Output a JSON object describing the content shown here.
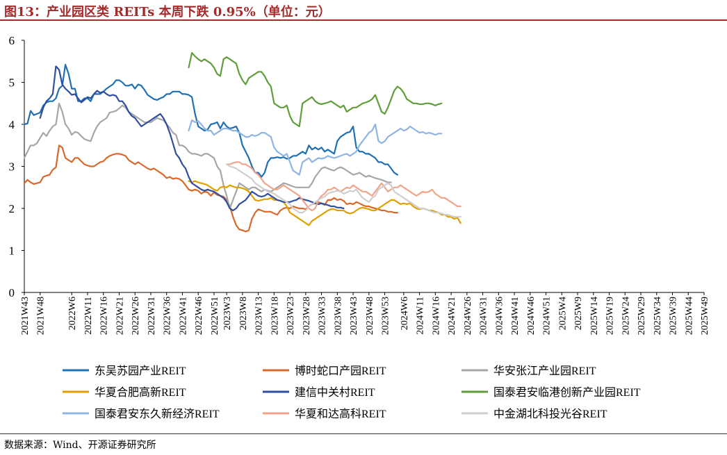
{
  "title": "图13：产业园区类 REITs 本周下跌 0.95%（单位：元）",
  "source": "数据来源：Wind、开源证券研究所",
  "chart_data": {
    "type": "line",
    "title": "图13：产业园区类 REITs 本周下跌 0.95%（单位：元）",
    "xlabel": "",
    "ylabel": "",
    "ylim": [
      0,
      6
    ],
    "yticks": [
      0,
      1,
      2,
      3,
      4,
      5,
      6
    ],
    "grid": false,
    "legend_position": "bottom",
    "x_start_label": "2021W43",
    "x_end_label": "2025W49",
    "x_tick_labels": [
      "2021W43",
      "2021W48",
      "2022W6",
      "2022W11",
      "2022W16",
      "2022W21",
      "2022W26",
      "2022W31",
      "2022W36",
      "2022W41",
      "2022W46",
      "2022W51",
      "2023W3",
      "2023W8",
      "2023W13",
      "2023W18",
      "2023W23",
      "2023W28",
      "2023W33",
      "2023W38",
      "2023W43",
      "2023W48",
      "2023W53",
      "2024W6",
      "2024W11",
      "2024W16",
      "2024W21",
      "2024W26",
      "2024W31",
      "2024W36",
      "2024W41",
      "2024W46",
      "2024W51",
      "2025W4",
      "2025W9",
      "2025W14",
      "2025W19",
      "2025W24",
      "2025W29",
      "2025W34",
      "2025W39",
      "2025W44",
      "2025W49"
    ],
    "series": [
      {
        "name": "东吴苏园产业REIT",
        "color": "#1f6fb3",
        "start": "2021W43",
        "values": [
          4.0,
          4.02,
          4.32,
          4.22,
          4.25,
          4.28,
          4.45,
          4.52,
          4.55,
          4.55,
          4.62,
          4.85,
          4.92,
          5.42,
          5.2,
          4.85,
          4.85,
          4.55,
          4.55,
          4.62,
          4.62,
          4.55,
          4.72,
          4.72,
          4.72,
          4.78,
          4.85,
          4.9,
          4.95,
          5.05,
          5.05,
          5.0,
          4.92,
          4.92,
          4.95,
          4.85,
          4.95,
          4.92,
          4.82,
          4.7,
          4.65,
          4.6,
          4.58,
          4.62,
          4.65,
          4.72,
          4.72,
          4.78,
          4.78,
          4.78,
          4.72,
          4.72,
          4.7,
          4.65,
          4.25,
          3.95,
          3.9,
          3.85,
          3.88,
          4.0,
          4.02,
          4.05,
          3.9,
          4.05,
          3.95,
          3.9,
          3.92,
          3.95,
          3.8,
          3.5,
          3.35,
          3.2,
          3.0,
          2.85,
          2.85,
          2.75,
          2.85,
          3.1,
          3.2,
          3.2,
          3.22,
          3.2,
          3.22,
          3.18,
          3.2,
          3.25,
          3.25,
          3.3,
          3.35,
          3.3,
          3.5,
          3.4,
          3.45,
          3.4,
          3.45,
          3.35,
          3.4,
          3.35,
          3.3,
          3.6,
          3.7,
          3.75,
          3.8,
          3.82,
          3.95,
          3.45,
          3.35,
          3.35,
          3.3,
          3.3,
          3.25,
          3.2,
          3.1,
          3.1,
          3.05,
          3.05,
          2.95,
          2.85,
          2.8
        ]
      },
      {
        "name": "博时蛇口产园REIT",
        "color": "#d9682b",
        "start": "2021W43",
        "values": [
          2.6,
          2.68,
          2.62,
          2.58,
          2.6,
          2.62,
          2.75,
          2.78,
          2.8,
          2.92,
          2.98,
          3.5,
          3.45,
          3.2,
          3.15,
          3.1,
          3.2,
          3.2,
          3.12,
          3.05,
          3.02,
          3.0,
          3.0,
          3.05,
          3.1,
          3.12,
          3.2,
          3.25,
          3.28,
          3.3,
          3.3,
          3.28,
          3.25,
          3.15,
          3.1,
          3.05,
          3.1,
          3.05,
          3.0,
          2.95,
          2.92,
          2.95,
          2.9,
          2.85,
          2.8,
          2.72,
          2.75,
          2.7,
          2.72,
          2.7,
          2.65,
          2.55,
          2.45,
          2.42,
          2.45,
          2.42,
          2.35,
          2.4,
          2.38,
          2.3,
          2.38,
          2.32,
          2.3,
          2.28,
          2.2,
          2.05,
          1.8,
          1.6,
          1.5,
          1.48,
          1.45,
          1.48,
          1.75,
          1.9,
          1.98,
          1.95,
          1.92,
          1.92,
          1.92,
          1.88,
          1.85,
          1.95,
          2.0,
          2.02,
          2.0,
          2.05,
          2.02,
          2.0,
          2.0,
          1.98,
          2.05,
          2.1,
          2.12,
          2.15,
          2.12,
          2.08,
          2.2,
          2.2,
          2.25,
          2.2,
          2.22,
          2.18,
          2.1,
          2.12,
          2.1,
          2.15,
          2.12,
          2.08,
          2.05,
          2.05,
          2.02,
          2.0,
          1.98,
          1.95,
          1.95,
          1.92,
          1.92,
          1.9,
          1.9
        ]
      },
      {
        "name": "华安张江产业园REIT",
        "color": "#a6a6a6",
        "start": "2021W43",
        "values": [
          3.2,
          3.35,
          3.5,
          3.5,
          3.55,
          3.68,
          3.8,
          3.72,
          3.85,
          3.95,
          4.0,
          4.5,
          4.3,
          4.0,
          3.9,
          3.75,
          3.82,
          3.8,
          3.72,
          3.65,
          3.62,
          3.6,
          3.8,
          3.95,
          4.05,
          4.1,
          4.15,
          4.28,
          4.3,
          4.32,
          4.38,
          4.45,
          4.4,
          4.3,
          4.25,
          4.2,
          4.15,
          4.1,
          4.05,
          4.05,
          4.05,
          4.1,
          4.15,
          4.12,
          4.1,
          4.0,
          3.92,
          3.8,
          3.75,
          3.5,
          3.5,
          3.45,
          3.35,
          3.3,
          3.3,
          3.28,
          3.25,
          3.3,
          3.3,
          3.25,
          3.2,
          3.0,
          2.9,
          2.55,
          2.3,
          2.0,
          2.2,
          2.4,
          2.6,
          2.55,
          2.5,
          2.45,
          2.5,
          2.5,
          2.45,
          2.4,
          2.45,
          2.42,
          2.4,
          2.45,
          2.5,
          2.55,
          2.6,
          2.58,
          2.55,
          2.52,
          2.5,
          2.5,
          2.5,
          2.5,
          2.5,
          2.6,
          2.75,
          2.85,
          2.95,
          2.98,
          2.95,
          2.92,
          2.9,
          2.95,
          2.98,
          2.95,
          2.9,
          2.85,
          2.8,
          2.82,
          2.85,
          2.8,
          2.75,
          2.78,
          2.75,
          2.72,
          2.7,
          2.68,
          2.65,
          2.62,
          2.62
        ]
      },
      {
        "name": "华夏合肥高新REIT",
        "color": "#e0a100",
        "start": "2022W43",
        "values": [
          2.65,
          2.62,
          2.65,
          2.62,
          2.6,
          2.58,
          2.55,
          2.5,
          2.45,
          2.42,
          2.5,
          2.52,
          2.5,
          2.55,
          2.52,
          2.5,
          2.5,
          2.48,
          2.45,
          2.4,
          2.3,
          2.2,
          2.18,
          2.2,
          2.22,
          2.22,
          2.25,
          2.2,
          2.2,
          2.18,
          2.15,
          2.05,
          1.9,
          1.85,
          1.8,
          1.75,
          1.7,
          1.65,
          1.6,
          1.7,
          1.75,
          1.8,
          1.85,
          1.9,
          1.95,
          1.98,
          1.98,
          1.95,
          1.95,
          1.95,
          1.9,
          1.88,
          1.9,
          1.95,
          2.0,
          2.02,
          2.0,
          1.98,
          1.95,
          1.95,
          2.0,
          2.05,
          2.1,
          2.15,
          2.2,
          2.2,
          2.15,
          2.1,
          2.12,
          2.1,
          2.12,
          2.05,
          2.0,
          1.98,
          2.0,
          1.98,
          1.95,
          1.95,
          1.92,
          1.9,
          1.85,
          1.85,
          1.8,
          1.8,
          1.75,
          1.78,
          1.65
        ]
      },
      {
        "name": "建信中关村REIT",
        "color": "#2f4ea0",
        "start": "2021W48",
        "values": [
          4.15,
          4.4,
          4.55,
          4.62,
          4.72,
          5.38,
          5.3,
          4.95,
          4.85,
          4.78,
          4.7,
          4.72,
          4.62,
          4.52,
          4.58,
          4.65,
          4.62,
          4.72,
          4.8,
          4.75,
          4.78,
          4.72,
          4.68,
          4.7,
          4.68,
          4.55,
          4.55,
          4.45,
          4.3,
          4.2,
          4.15,
          4.05,
          3.95,
          4.0,
          4.05,
          4.1,
          4.15,
          4.2,
          4.25,
          4.15,
          4.0,
          3.8,
          3.55,
          3.3,
          3.2,
          3.05,
          2.95,
          2.75,
          2.6,
          2.55,
          2.5,
          2.45,
          2.42,
          2.45,
          2.42,
          2.4,
          2.35,
          2.3,
          2.25,
          2.15,
          2.0,
          1.95,
          2.0,
          2.1,
          2.15,
          2.2,
          2.3,
          2.4,
          2.35,
          2.3,
          2.28,
          2.3,
          2.35,
          2.3,
          2.25,
          2.2,
          2.18,
          2.15,
          2.15,
          2.15,
          2.18,
          2.2,
          2.25,
          2.22,
          2.2,
          2.18,
          2.15,
          2.12,
          2.1,
          2.12,
          2.1,
          2.08,
          2.05,
          2.05,
          2.02,
          2.02,
          2.0
        ]
      },
      {
        "name": "国泰君安临港创新产业园REIT",
        "color": "#5f9e3a",
        "start": "2022W43",
        "values": [
          5.35,
          5.7,
          5.62,
          5.55,
          5.5,
          5.55,
          5.5,
          5.45,
          5.35,
          5.2,
          5.15,
          5.55,
          5.6,
          5.55,
          5.5,
          5.45,
          5.2,
          5.05,
          4.95,
          5.1,
          5.15,
          5.2,
          5.25,
          5.25,
          5.15,
          5.0,
          4.9,
          4.5,
          4.45,
          4.4,
          4.4,
          4.45,
          4.2,
          4.05,
          4.0,
          3.95,
          4.5,
          4.55,
          4.6,
          4.65,
          4.55,
          4.5,
          4.48,
          4.5,
          4.52,
          4.55,
          4.5,
          4.45,
          4.4,
          4.45,
          4.3,
          4.35,
          4.4,
          4.4,
          4.45,
          4.5,
          4.52,
          4.55,
          4.6,
          4.7,
          4.5,
          4.3,
          4.25,
          4.4,
          4.6,
          4.8,
          4.9,
          4.85,
          4.75,
          4.6,
          4.55,
          4.5,
          4.5,
          4.48,
          4.48,
          4.5,
          4.5,
          4.48,
          4.45,
          4.48,
          4.5
        ]
      },
      {
        "name": "国泰君安东久新经济REIT",
        "color": "#8fb4e3",
        "start": "2022W43",
        "values": [
          3.85,
          4.1,
          4.05,
          4.08,
          4.0,
          3.9,
          3.85,
          3.85,
          3.75,
          3.8,
          3.85,
          3.9,
          3.9,
          3.88,
          3.85,
          3.85,
          3.8,
          3.75,
          3.7,
          3.7,
          3.75,
          3.72,
          3.75,
          3.8,
          3.8,
          3.75,
          3.7,
          3.45,
          3.35,
          3.3,
          3.25,
          3.3,
          3.1,
          2.9,
          2.85,
          2.8,
          3.1,
          3.15,
          3.2,
          3.1,
          3.15,
          3.2,
          3.18,
          3.2,
          3.25,
          3.22,
          3.2,
          3.22,
          3.25,
          3.28,
          3.3,
          3.25,
          3.3,
          3.35,
          3.5,
          3.6,
          3.7,
          3.8,
          3.85,
          4.0,
          3.6,
          3.55,
          3.6,
          3.7,
          3.75,
          3.8,
          3.85,
          3.9,
          3.85,
          3.88,
          3.95,
          3.9,
          3.85,
          3.8,
          3.82,
          3.78,
          3.8,
          3.78,
          3.75,
          3.78,
          3.78
        ]
      },
      {
        "name": "华夏和达高科REIT",
        "color": "#f0a58a",
        "start": "2023W3",
        "values": [
          3.05,
          3.05,
          3.08,
          3.1,
          3.1,
          3.05,
          3.05,
          3.0,
          2.95,
          2.85,
          2.8,
          2.7,
          2.6,
          2.55,
          2.5,
          2.45,
          2.45,
          2.5,
          2.55,
          2.5,
          2.45,
          2.4,
          2.35,
          2.3,
          2.2,
          2.1,
          2.0,
          1.95,
          2.0,
          2.2,
          2.3,
          2.35,
          2.45,
          2.45,
          2.5,
          2.45,
          2.4,
          2.45,
          2.5,
          2.48,
          2.55,
          2.5,
          2.45,
          2.4,
          2.4,
          2.35,
          2.3,
          2.4,
          2.5,
          2.6,
          2.5,
          2.4,
          2.45,
          2.5,
          2.5,
          2.55,
          2.5,
          2.45,
          2.4,
          2.35,
          2.3,
          2.35,
          2.4,
          2.38,
          2.4,
          2.45,
          2.35,
          2.3,
          2.25,
          2.25,
          2.2,
          2.15,
          2.1,
          2.05,
          2.05
        ]
      },
      {
        "name": "中金湖北科投光谷REIT",
        "color": "#cfcfcf",
        "start": "2023W3",
        "values": [
          3.05,
          3.0,
          2.98,
          2.95,
          2.9,
          2.85,
          2.8,
          2.75,
          2.7,
          2.6,
          2.55,
          2.5,
          2.45,
          2.4,
          2.38,
          2.35,
          2.3,
          2.25,
          2.2,
          2.15,
          2.1,
          2.0,
          1.95,
          1.9,
          1.9,
          1.95,
          2.05,
          2.1,
          2.15,
          2.2,
          2.25,
          2.28,
          2.35,
          2.38,
          2.4,
          2.42,
          2.4,
          2.35,
          2.38,
          2.42,
          2.4,
          2.45,
          2.35,
          2.25,
          2.2,
          2.15,
          2.25,
          2.3,
          2.45,
          2.5,
          2.55,
          2.6,
          2.55,
          2.4,
          2.35,
          2.3,
          2.25,
          2.2,
          2.15,
          2.1,
          2.05,
          2.0,
          2.0,
          1.98,
          1.95,
          1.92,
          1.9,
          1.9,
          1.88,
          1.85,
          1.85,
          1.82,
          1.8,
          1.8,
          1.8
        ]
      }
    ]
  }
}
